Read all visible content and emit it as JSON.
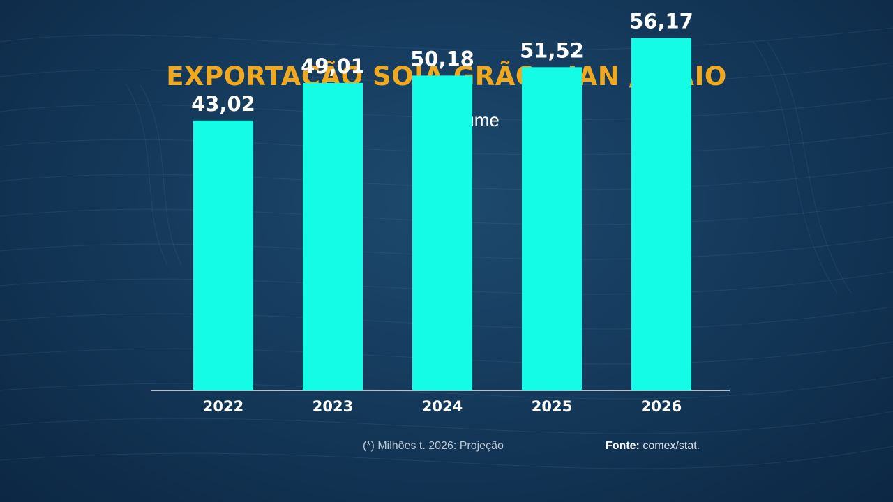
{
  "chart_data": {
    "type": "bar",
    "title": "EXPORTAÇÃO SOJA GRÃO - JAN / MAIO",
    "subtitle": "Volume",
    "categories": [
      "2022",
      "2023",
      "2024",
      "2025",
      "2026"
    ],
    "values": [
      43.02,
      49.01,
      50.18,
      51.52,
      56.17
    ],
    "value_labels": [
      "43,02",
      "49,01",
      "50,18",
      "51,52",
      "56,17"
    ],
    "ylim": [
      0,
      60
    ],
    "grid": false,
    "legend": "none",
    "bar_color": "#14fbe6",
    "title_color": "#f0a81e"
  },
  "footer": {
    "note": "(*) Milhões t. 2026: Projeção",
    "source_label": "Fonte:",
    "source_value": " comex/stat."
  }
}
